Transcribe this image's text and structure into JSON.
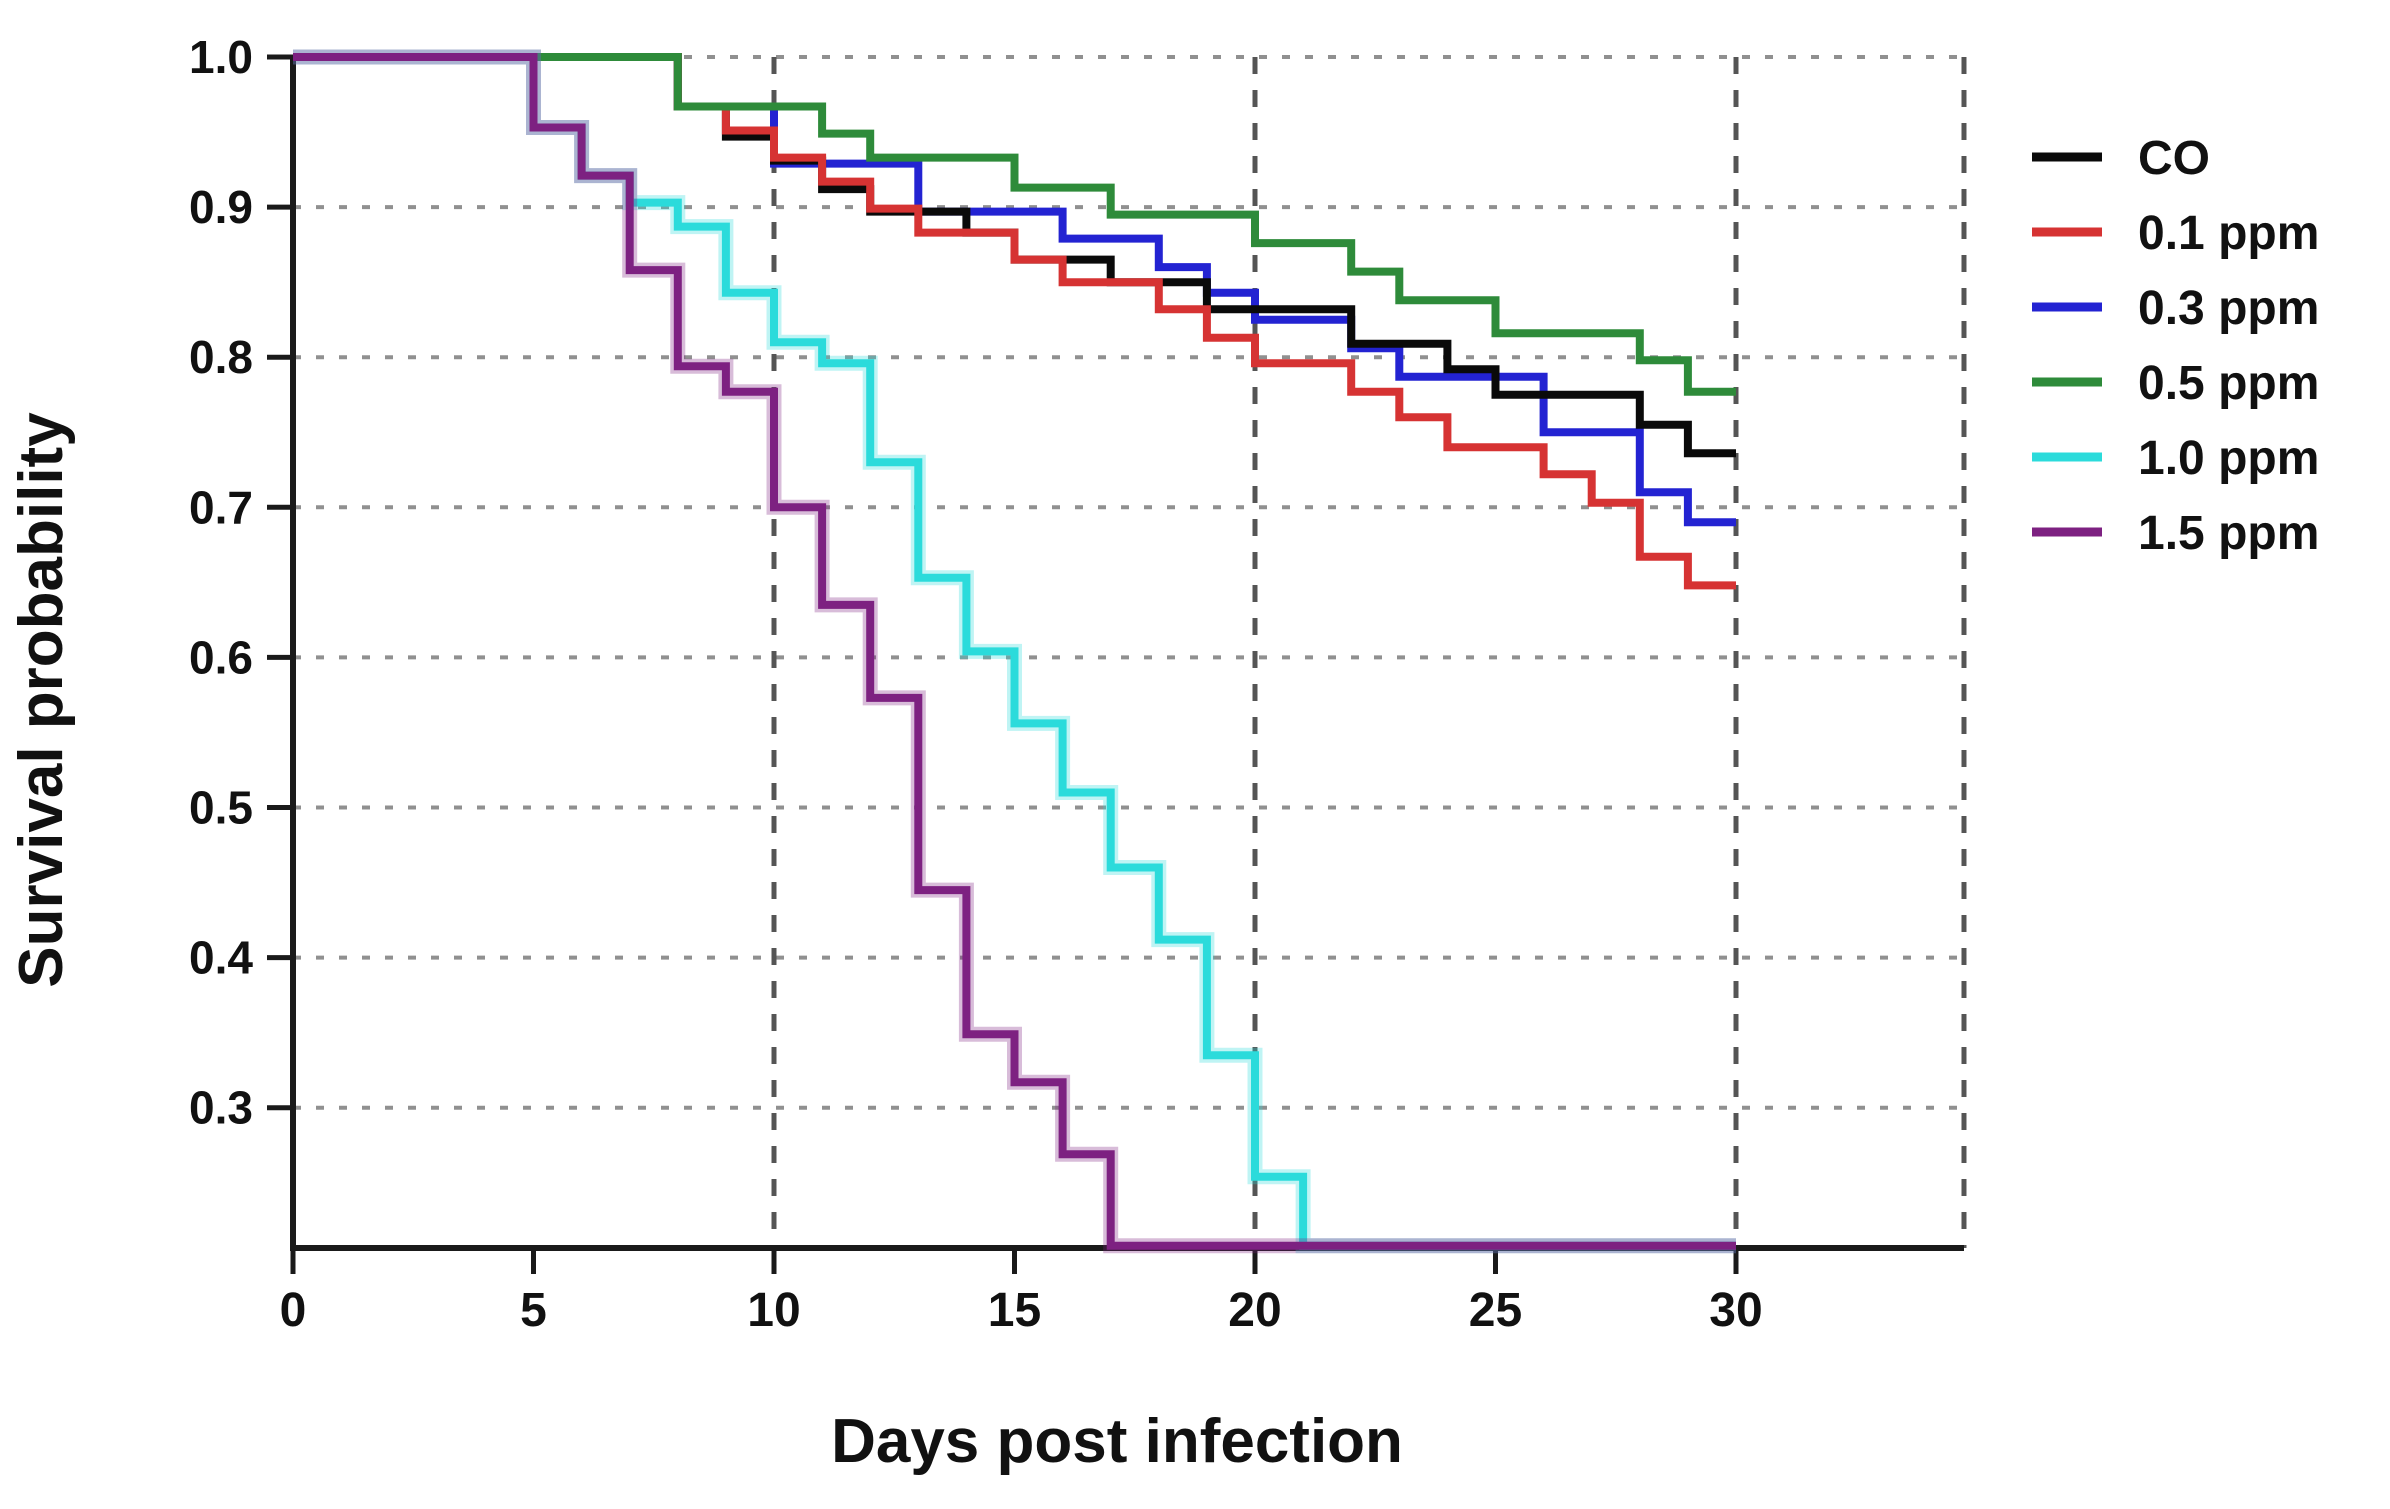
{
  "figure": {
    "background": "#ffffff",
    "accent_colors": {
      "axis": "#1a1a1a",
      "h_gridline": "#909090",
      "v_gridline": "#555555"
    }
  },
  "axes": {
    "y": {
      "label": "Survival probability",
      "tick_labels": [
        "1.0",
        "0.9",
        "0.8",
        "0.7",
        "0.6",
        "0.5",
        "0.4",
        "0.3"
      ],
      "tick_values": [
        1.0,
        0.9,
        0.8,
        0.7,
        0.6,
        0.5,
        0.4,
        0.3
      ],
      "min_value": 0.2066,
      "max_value": 1.0
    },
    "x": {
      "label": "Days post infection",
      "tick_labels": [
        "0",
        "5",
        "10",
        "15",
        "20",
        "25",
        "30"
      ],
      "tick_values": [
        0,
        5,
        10,
        15,
        20,
        25,
        30
      ],
      "min_day": 0,
      "max_day": 34.74
    }
  },
  "gridlines": {
    "horizontal_values": [
      1.0,
      0.9,
      0.8,
      0.7,
      0.6,
      0.5,
      0.4,
      0.3
    ],
    "vertical_days": [
      10,
      20,
      30
    ],
    "right_edge_day": 34.74
  },
  "legend": {
    "entries": [
      {
        "label": "CO",
        "color": "#0a0a0a"
      },
      {
        "label": "0.1 ppm",
        "color": "#d63333"
      },
      {
        "label": "0.3 ppm",
        "color": "#2323d2"
      },
      {
        "label": "0.5 ppm",
        "color": "#2e8b3a"
      },
      {
        "label": "1.0 ppm",
        "color": "#2bdbdb"
      },
      {
        "label": "1.5 ppm",
        "color": "#7d2181"
      }
    ]
  },
  "chart_data": {
    "type": "line",
    "subtype": "kaplan-meier-step",
    "title": "",
    "xlabel": "Days post infection",
    "ylabel": "Survival probability",
    "xlim": [
      0,
      34.74
    ],
    "ylim": [
      0.2066,
      1.0
    ],
    "grid": "dotted horizontal every 0.1; dashed vertical at days 10, 20, 30 and right frame edge",
    "legend_position": "right, outside plot",
    "end_day": 30,
    "series": [
      {
        "name": "CO",
        "color": "#0a0a0a",
        "glow": false,
        "steps": [
          [
            0,
            1.0
          ],
          [
            8,
            0.967
          ],
          [
            9,
            0.947
          ],
          [
            10,
            0.931
          ],
          [
            11,
            0.912
          ],
          [
            12,
            0.897
          ],
          [
            14,
            0.883
          ],
          [
            15,
            0.865
          ],
          [
            17,
            0.85
          ],
          [
            19,
            0.832
          ],
          [
            22,
            0.809
          ],
          [
            24,
            0.792
          ],
          [
            25,
            0.775
          ],
          [
            28,
            0.755
          ],
          [
            29,
            0.736
          ]
        ]
      },
      {
        "name": "0.1 ppm",
        "color": "#d63333",
        "glow": false,
        "steps": [
          [
            0,
            1.0
          ],
          [
            8,
            0.967
          ],
          [
            9,
            0.951
          ],
          [
            10,
            0.933
          ],
          [
            11,
            0.917
          ],
          [
            12,
            0.899
          ],
          [
            13,
            0.883
          ],
          [
            15,
            0.865
          ],
          [
            16,
            0.85
          ],
          [
            18,
            0.832
          ],
          [
            19,
            0.813
          ],
          [
            20,
            0.796
          ],
          [
            22,
            0.777
          ],
          [
            23,
            0.76
          ],
          [
            24,
            0.74
          ],
          [
            26,
            0.722
          ],
          [
            27,
            0.703
          ],
          [
            28,
            0.667
          ],
          [
            29,
            0.648
          ]
        ]
      },
      {
        "name": "0.3 ppm",
        "color": "#2323d2",
        "glow": false,
        "steps": [
          [
            0,
            1.0
          ],
          [
            8,
            0.967
          ],
          [
            10,
            0.929
          ],
          [
            13,
            0.897
          ],
          [
            16,
            0.879
          ],
          [
            18,
            0.86
          ],
          [
            19,
            0.843
          ],
          [
            20,
            0.825
          ],
          [
            22,
            0.806
          ],
          [
            23,
            0.787
          ],
          [
            26,
            0.75
          ],
          [
            28,
            0.71
          ],
          [
            29,
            0.69
          ]
        ]
      },
      {
        "name": "0.5 ppm",
        "color": "#2e8b3a",
        "glow": false,
        "steps": [
          [
            0,
            1.0
          ],
          [
            8,
            0.967
          ],
          [
            11,
            0.949
          ],
          [
            12,
            0.933
          ],
          [
            15,
            0.913
          ],
          [
            17,
            0.895
          ],
          [
            20,
            0.876
          ],
          [
            22,
            0.857
          ],
          [
            23,
            0.838
          ],
          [
            25,
            0.816
          ],
          [
            28,
            0.798
          ],
          [
            29,
            0.777
          ]
        ]
      },
      {
        "name": "1.0 ppm",
        "color": "#2bdbdb",
        "glow": true,
        "steps": [
          [
            0,
            1.0
          ],
          [
            5,
            0.953
          ],
          [
            6,
            0.921
          ],
          [
            7,
            0.903
          ],
          [
            8,
            0.887
          ],
          [
            9,
            0.843
          ],
          [
            10,
            0.81
          ],
          [
            11,
            0.796
          ],
          [
            12,
            0.73
          ],
          [
            13,
            0.653
          ],
          [
            14,
            0.604
          ],
          [
            15,
            0.556
          ],
          [
            16,
            0.51
          ],
          [
            17,
            0.46
          ],
          [
            18,
            0.412
          ],
          [
            19,
            0.335
          ],
          [
            20,
            0.254
          ],
          [
            21,
            0.208
          ]
        ]
      },
      {
        "name": "1.5 ppm",
        "color": "#7d2181",
        "glow": true,
        "steps": [
          [
            0,
            1.0
          ],
          [
            5,
            0.953
          ],
          [
            6,
            0.921
          ],
          [
            7,
            0.858
          ],
          [
            8,
            0.794
          ],
          [
            9,
            0.777
          ],
          [
            10,
            0.7
          ],
          [
            11,
            0.635
          ],
          [
            12,
            0.573
          ],
          [
            13,
            0.445
          ],
          [
            14,
            0.349
          ],
          [
            15,
            0.317
          ],
          [
            16,
            0.269
          ],
          [
            17,
            0.208
          ]
        ]
      }
    ]
  }
}
